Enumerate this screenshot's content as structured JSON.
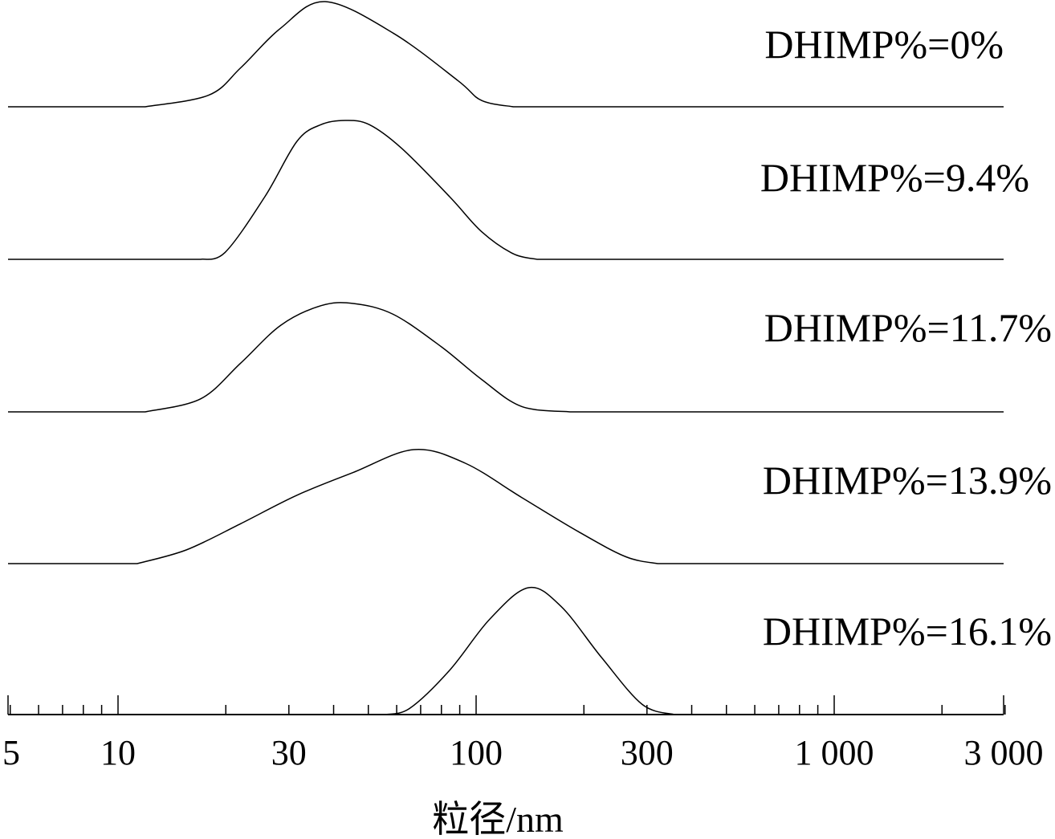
{
  "chart_data": {
    "type": "line",
    "title": "",
    "xlabel": "粒径/nm",
    "ylabel": "",
    "xscale": "log",
    "xlim": [
      5,
      3000
    ],
    "x_tick_labels": [
      "5",
      "10",
      "30",
      "100",
      "300",
      "1 000",
      "3 000"
    ],
    "x_tick_values": [
      5,
      10,
      30,
      100,
      300,
      1000,
      3000
    ],
    "grid": false,
    "layout": "stacked-offset",
    "series": [
      {
        "name": "DHIMP%=0%",
        "points": [
          [
            11.9,
            0
          ],
          [
            17.9,
            0.11
          ],
          [
            22.0,
            0.37
          ],
          [
            28.5,
            0.75
          ],
          [
            37.9,
            1
          ],
          [
            58.7,
            0.7
          ],
          [
            88.9,
            0.25
          ],
          [
            103.5,
            0.06
          ],
          [
            127,
            0
          ]
        ]
      },
      {
        "name": "DHIMP%=9.4%",
        "points": [
          [
            17.0,
            0
          ],
          [
            19.9,
            0.05
          ],
          [
            25.7,
            0.45
          ],
          [
            31.6,
            0.85
          ],
          [
            36.9,
            0.97
          ],
          [
            43.1,
            1
          ],
          [
            50.3,
            0.97
          ],
          [
            61.9,
            0.8
          ],
          [
            84.4,
            0.45
          ],
          [
            103.5,
            0.2
          ],
          [
            127,
            0.04
          ],
          [
            148,
            0
          ]
        ]
      },
      {
        "name": "DHIMP%=11.7%",
        "points": [
          [
            11.9,
            0
          ],
          [
            17.0,
            0.12
          ],
          [
            22.0,
            0.45
          ],
          [
            28.5,
            0.8
          ],
          [
            36.9,
            0.98
          ],
          [
            45.4,
            1
          ],
          [
            58.7,
            0.9
          ],
          [
            80.0,
            0.6
          ],
          [
            103.5,
            0.3
          ],
          [
            134,
            0.05
          ],
          [
            183,
            0
          ]
        ]
      },
      {
        "name": "DHIMP%=13.9%",
        "points": [
          [
            11.3,
            0
          ],
          [
            15.5,
            0.12
          ],
          [
            22.0,
            0.35
          ],
          [
            31.6,
            0.6
          ],
          [
            45.4,
            0.8
          ],
          [
            67.0,
            1
          ],
          [
            93.3,
            0.88
          ],
          [
            134,
            0.58
          ],
          [
            193,
            0.28
          ],
          [
            262,
            0.06
          ],
          [
            322,
            0
          ]
        ]
      },
      {
        "name": "DHIMP%=16.1%",
        "points": [
          [
            55.8,
            0
          ],
          [
            65.3,
            0.05
          ],
          [
            84.4,
            0.35
          ],
          [
            109,
            0.75
          ],
          [
            140,
            1
          ],
          [
            173,
            0.85
          ],
          [
            224,
            0.45
          ],
          [
            291,
            0.08
          ],
          [
            358,
            0
          ]
        ]
      }
    ]
  }
}
